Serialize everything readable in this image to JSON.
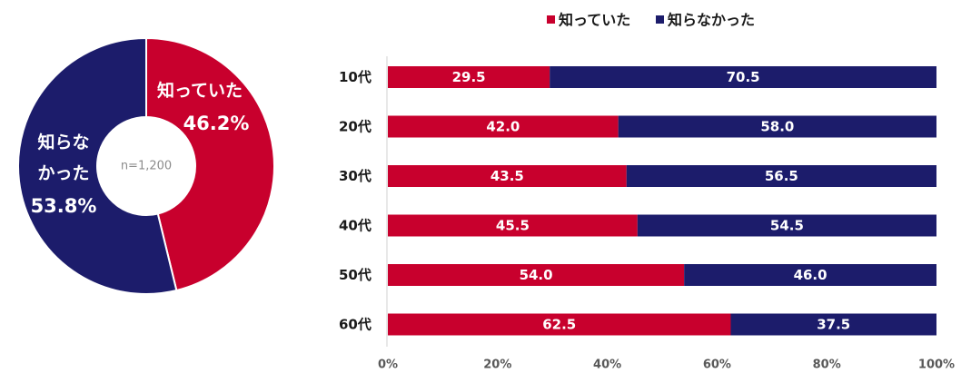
{
  "colors": {
    "known": "#c8002d",
    "unknown": "#1c1c6b",
    "axis": "#d0d0d0",
    "tick": "#595959",
    "text": "#1a1a1a",
    "center": "#8c8c8c"
  },
  "chart_data": [
    {
      "type": "pie",
      "subtype": "donut",
      "center_label": "n=1,200",
      "slices": [
        {
          "label_lines": [
            "知っていた"
          ],
          "value": 46.2,
          "value_label": "46.2%",
          "color": "#c8002d"
        },
        {
          "label_lines": [
            "知らな",
            "かった"
          ],
          "value": 53.8,
          "value_label": "53.8%",
          "color": "#1c1c6b"
        }
      ]
    },
    {
      "type": "bar",
      "orientation": "horizontal",
      "stacked": "percent",
      "legend": [
        "知っていた",
        "知らなかった"
      ],
      "legend_position": "top",
      "categories": [
        "10代",
        "20代",
        "30代",
        "40代",
        "50代",
        "60代"
      ],
      "series": [
        {
          "name": "知っていた",
          "values": [
            "29.5",
            "42.0",
            "43.5",
            "45.5",
            "54.0",
            "62.5"
          ],
          "color": "#c8002d"
        },
        {
          "name": "知らなかった",
          "values": [
            "70.5",
            "58.0",
            "56.5",
            "54.5",
            "46.0",
            "37.5"
          ],
          "color": "#1c1c6b"
        }
      ],
      "xlim": [
        0,
        100
      ],
      "xticks": [
        "0%",
        "20%",
        "40%",
        "60%",
        "80%",
        "100%"
      ]
    }
  ]
}
